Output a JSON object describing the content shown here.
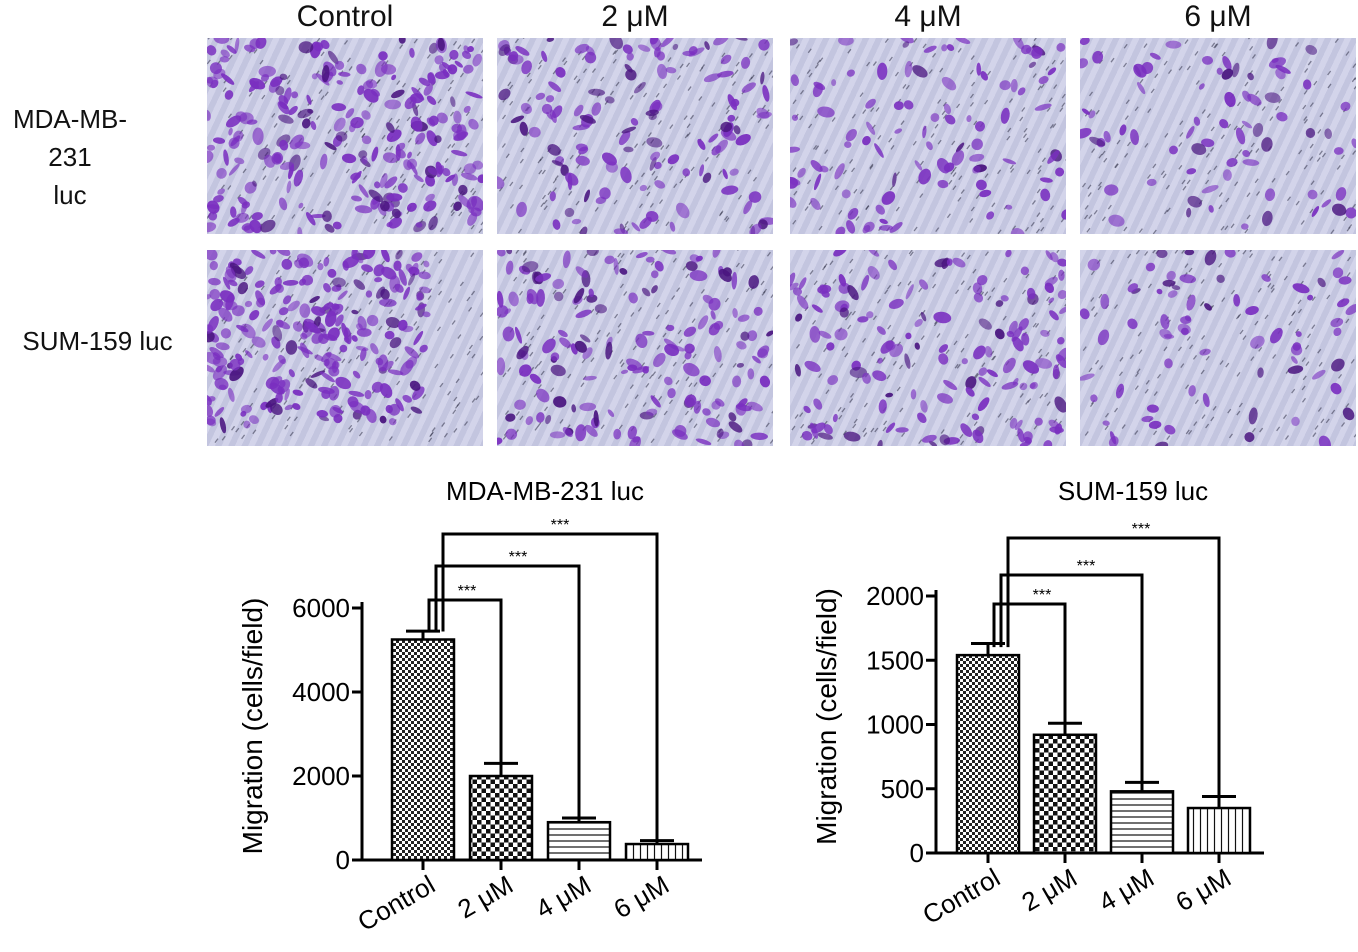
{
  "figure": {
    "column_headers": [
      "Control",
      "2 μM",
      "4 μM",
      "6 μM"
    ],
    "row_labels": [
      [
        "MDA-MB-231",
        "luc"
      ],
      [
        "SUM-159 luc"
      ]
    ],
    "micrograph_density": [
      [
        1.0,
        0.55,
        0.4,
        0.3
      ],
      [
        1.0,
        0.65,
        0.6,
        0.3
      ]
    ],
    "colors": {
      "stain": "#7a2fc0",
      "stain_dark": "#4a1580",
      "membrane": "#c9cbe6",
      "pore": "#33334a"
    }
  },
  "chart_data": [
    {
      "type": "bar",
      "title": "MDA-MB-231  luc",
      "ylabel": "Migration (cells/field)",
      "xlabel": "",
      "categories": [
        "Control",
        "2 μM",
        "4 μM",
        "6 μM"
      ],
      "values": [
        5250,
        2000,
        900,
        380
      ],
      "errors": [
        200,
        300,
        100,
        80
      ],
      "patterns": [
        "checker-fine",
        "checker-coarse",
        "horizontal",
        "vertical"
      ],
      "ylim": [
        0,
        6000
      ],
      "yticks": [
        0,
        2000,
        4000,
        6000
      ],
      "significance": [
        {
          "from": 0,
          "to": 1,
          "label": "***"
        },
        {
          "from": 0,
          "to": 2,
          "label": "***"
        },
        {
          "from": 0,
          "to": 3,
          "label": "***"
        }
      ]
    },
    {
      "type": "bar",
      "title": "SUM-159 luc",
      "ylabel": "Migration (cells/field)",
      "xlabel": "",
      "categories": [
        "Control",
        "2 μM",
        "4 μM",
        "6 μM"
      ],
      "values": [
        1540,
        920,
        480,
        350
      ],
      "errors": [
        90,
        90,
        70,
        90
      ],
      "patterns": [
        "checker-fine",
        "checker-coarse",
        "horizontal",
        "vertical"
      ],
      "ylim": [
        0,
        2000
      ],
      "yticks": [
        0,
        500,
        1000,
        1500,
        2000
      ],
      "significance": [
        {
          "from": 0,
          "to": 1,
          "label": "***"
        },
        {
          "from": 0,
          "to": 2,
          "label": "***"
        },
        {
          "from": 0,
          "to": 3,
          "label": "***"
        }
      ]
    }
  ]
}
